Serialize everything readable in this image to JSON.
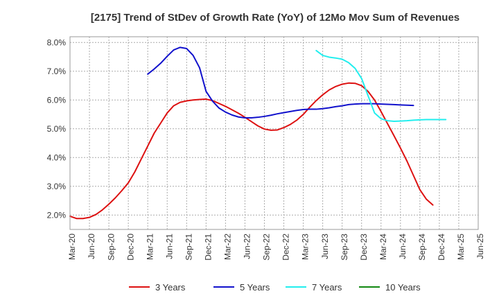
{
  "chart_data": {
    "type": "line",
    "title": "[2175]  Trend of StDev of Growth Rate (YoY) of 12Mo Mov Sum of Revenues",
    "xlabel": "",
    "ylabel": "",
    "ylim": [
      1.5,
      8.2
    ],
    "y_ticks": [
      2.0,
      3.0,
      4.0,
      5.0,
      6.0,
      7.0,
      8.0
    ],
    "y_tick_labels": [
      "2.0%",
      "3.0%",
      "4.0%",
      "5.0%",
      "6.0%",
      "7.0%",
      "8.0%"
    ],
    "x_tick_labels": [
      "Mar-20",
      "Jun-20",
      "Sep-20",
      "Dec-20",
      "Mar-21",
      "Jun-21",
      "Sep-21",
      "Dec-21",
      "Mar-22",
      "Jun-22",
      "Sep-22",
      "Dec-22",
      "Mar-23",
      "Jun-23",
      "Sep-23",
      "Dec-23",
      "Mar-24",
      "Jun-24",
      "Sep-24",
      "Dec-24",
      "Mar-25",
      "Jun-25"
    ],
    "grid": true,
    "legend_position": "bottom",
    "series": [
      {
        "name": "3 Years",
        "color": "#dd1111",
        "start_index": 0,
        "values": [
          1.96,
          1.88,
          1.88,
          1.92,
          2.02,
          2.18,
          2.38,
          2.6,
          2.85,
          3.12,
          3.5,
          3.95,
          4.4,
          4.85,
          5.2,
          5.55,
          5.8,
          5.92,
          5.97,
          6.0,
          6.02,
          6.03,
          5.98,
          5.88,
          5.78,
          5.66,
          5.54,
          5.4,
          5.25,
          5.1,
          4.99,
          4.95,
          4.96,
          5.04,
          5.15,
          5.3,
          5.5,
          5.75,
          5.98,
          6.18,
          6.35,
          6.47,
          6.55,
          6.59,
          6.58,
          6.5,
          6.3,
          6.0,
          5.6,
          5.18,
          4.76,
          4.33,
          3.88,
          3.38,
          2.88,
          2.55,
          2.35
        ]
      },
      {
        "name": "5 Years",
        "color": "#1111cc",
        "start_index": 12,
        "values": [
          6.9,
          7.08,
          7.28,
          7.52,
          7.74,
          7.83,
          7.79,
          7.55,
          7.12,
          6.3,
          5.96,
          5.72,
          5.58,
          5.48,
          5.41,
          5.38,
          5.38,
          5.4,
          5.43,
          5.47,
          5.52,
          5.56,
          5.6,
          5.64,
          5.67,
          5.68,
          5.68,
          5.7,
          5.73,
          5.77,
          5.8,
          5.84,
          5.86,
          5.87,
          5.87,
          5.87,
          5.86,
          5.85,
          5.84,
          5.83,
          5.82,
          5.81
        ]
      },
      {
        "name": "7 Years",
        "color": "#22eeee",
        "start_index": 38,
        "values": [
          7.72,
          7.55,
          7.49,
          7.46,
          7.42,
          7.3,
          7.1,
          6.75,
          6.15,
          5.55,
          5.35,
          5.28,
          5.26,
          5.27,
          5.28,
          5.3,
          5.31,
          5.32,
          5.32,
          5.32,
          5.32
        ]
      },
      {
        "name": "10 Years",
        "color": "#118811",
        "start_index": 0,
        "values": []
      }
    ]
  }
}
